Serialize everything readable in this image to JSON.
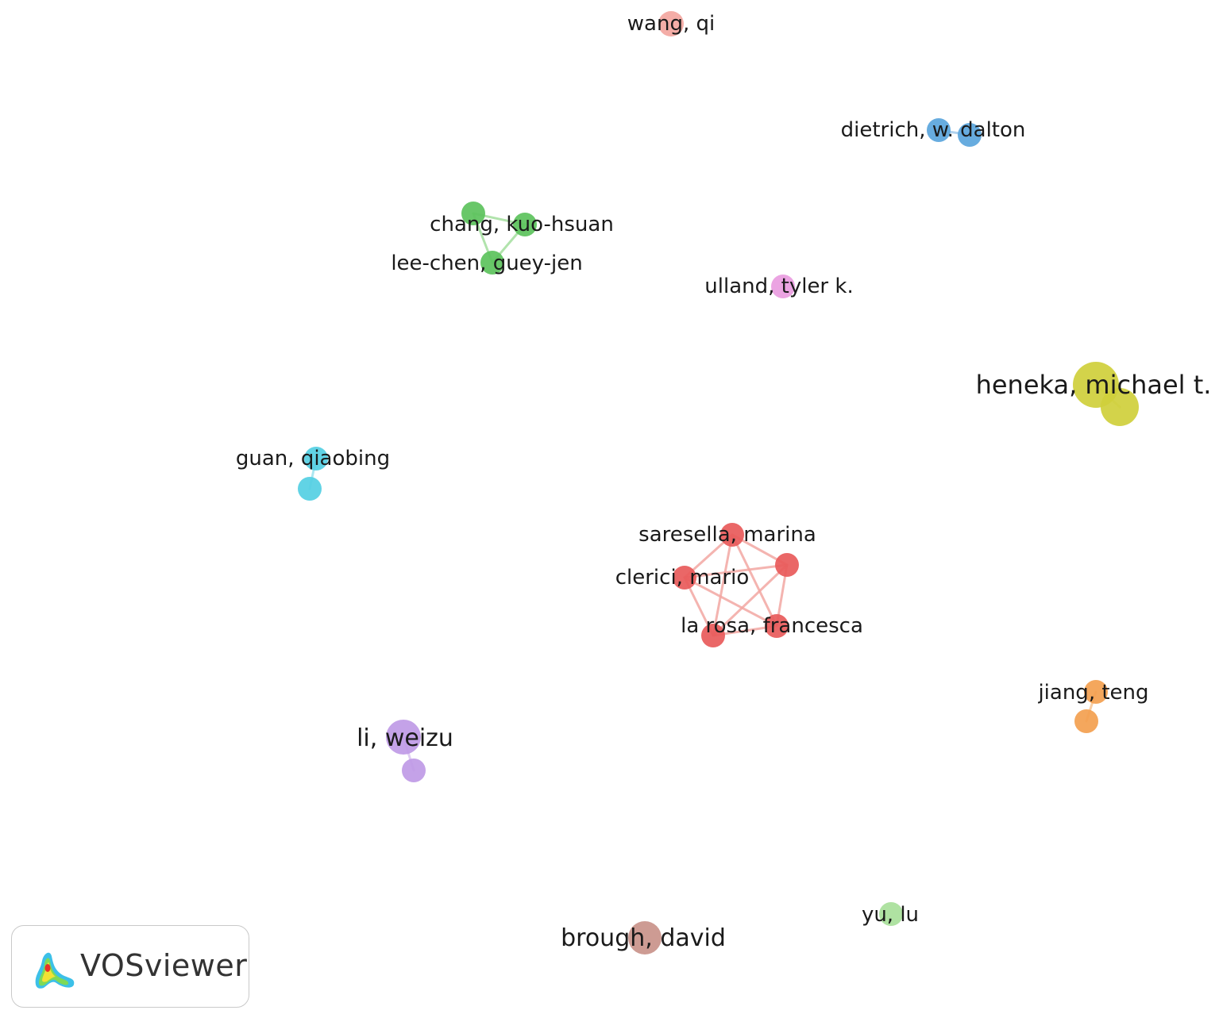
{
  "app": {
    "name": "VOSviewer"
  },
  "icons": {
    "logo": "vosviewer-heatmap-logo-icon"
  },
  "colors": {
    "red": "#e85a5a",
    "red_edge": "#f2a7a2",
    "green": "#5cc25c",
    "green_edge": "#a9e0a3",
    "blue": "#5aa5dc",
    "blue_edge": "#a7cdec",
    "cyan": "#54cfe3",
    "cyan_edge": "#a3e4ef",
    "yellow": "#cfcf3b",
    "yellow_edge": "#e4e49b",
    "orange": "#f3a04f",
    "orange_edge": "#f7c99b",
    "purple": "#bf9ae6",
    "purple_edge": "#dcc6f2",
    "salmon": "#f3a6a0",
    "pink": "#e99ce0",
    "brown": "#c9928a",
    "lightgreen": "#a8e09a"
  },
  "network": {
    "nodes": [
      {
        "id": "wang",
        "label": "wang, qi",
        "cluster": "salmon",
        "weight": 1
      },
      {
        "id": "dietrich",
        "label": "dietrich, w. dalton",
        "cluster": "blue",
        "weight": 1
      },
      {
        "id": "dietrich2",
        "label": "",
        "cluster": "blue",
        "weight": 1
      },
      {
        "id": "chang_top",
        "label": "",
        "cluster": "green",
        "weight": 1
      },
      {
        "id": "chang",
        "label": "chang, kuo-hsuan",
        "cluster": "green",
        "weight": 1
      },
      {
        "id": "leechen",
        "label": "lee-chen, guey-jen",
        "cluster": "green",
        "weight": 1
      },
      {
        "id": "ulland",
        "label": "ulland, tyler k.",
        "cluster": "pink",
        "weight": 1
      },
      {
        "id": "heneka",
        "label": "heneka, michael t.",
        "cluster": "yellow",
        "weight": 3
      },
      {
        "id": "heneka2",
        "label": "",
        "cluster": "yellow",
        "weight": 2
      },
      {
        "id": "guan",
        "label": "guan, qiaobing",
        "cluster": "cyan",
        "weight": 1
      },
      {
        "id": "guan2",
        "label": "",
        "cluster": "cyan",
        "weight": 1
      },
      {
        "id": "saresella",
        "label": "saresella, marina",
        "cluster": "red",
        "weight": 1
      },
      {
        "id": "red_right",
        "label": "",
        "cluster": "red",
        "weight": 1
      },
      {
        "id": "clerici",
        "label": "clerici, mario",
        "cluster": "red",
        "weight": 1
      },
      {
        "id": "larosa",
        "label": "la rosa, francesca",
        "cluster": "red",
        "weight": 1
      },
      {
        "id": "red_bl",
        "label": "",
        "cluster": "red",
        "weight": 1
      },
      {
        "id": "jiang",
        "label": "jiang, teng",
        "cluster": "orange",
        "weight": 1
      },
      {
        "id": "jiang2",
        "label": "",
        "cluster": "orange",
        "weight": 1
      },
      {
        "id": "li",
        "label": "li, weizu",
        "cluster": "purple",
        "weight": 2
      },
      {
        "id": "li2",
        "label": "",
        "cluster": "purple",
        "weight": 1
      },
      {
        "id": "brough",
        "label": "brough, david",
        "cluster": "brown",
        "weight": 2
      },
      {
        "id": "yu",
        "label": "yu, lu",
        "cluster": "lightgreen",
        "weight": 1
      }
    ],
    "edges": [
      [
        "chang_top",
        "chang"
      ],
      [
        "chang_top",
        "leechen"
      ],
      [
        "chang",
        "leechen"
      ],
      [
        "dietrich",
        "dietrich2"
      ],
      [
        "heneka",
        "heneka2"
      ],
      [
        "guan",
        "guan2"
      ],
      [
        "jiang",
        "jiang2"
      ],
      [
        "li",
        "li2"
      ],
      [
        "saresella",
        "red_right"
      ],
      [
        "saresella",
        "clerici"
      ],
      [
        "saresella",
        "larosa"
      ],
      [
        "saresella",
        "red_bl"
      ],
      [
        "red_right",
        "clerici"
      ],
      [
        "red_right",
        "larosa"
      ],
      [
        "red_right",
        "red_bl"
      ],
      [
        "clerici",
        "larosa"
      ],
      [
        "clerici",
        "red_bl"
      ],
      [
        "larosa",
        "red_bl"
      ]
    ]
  }
}
